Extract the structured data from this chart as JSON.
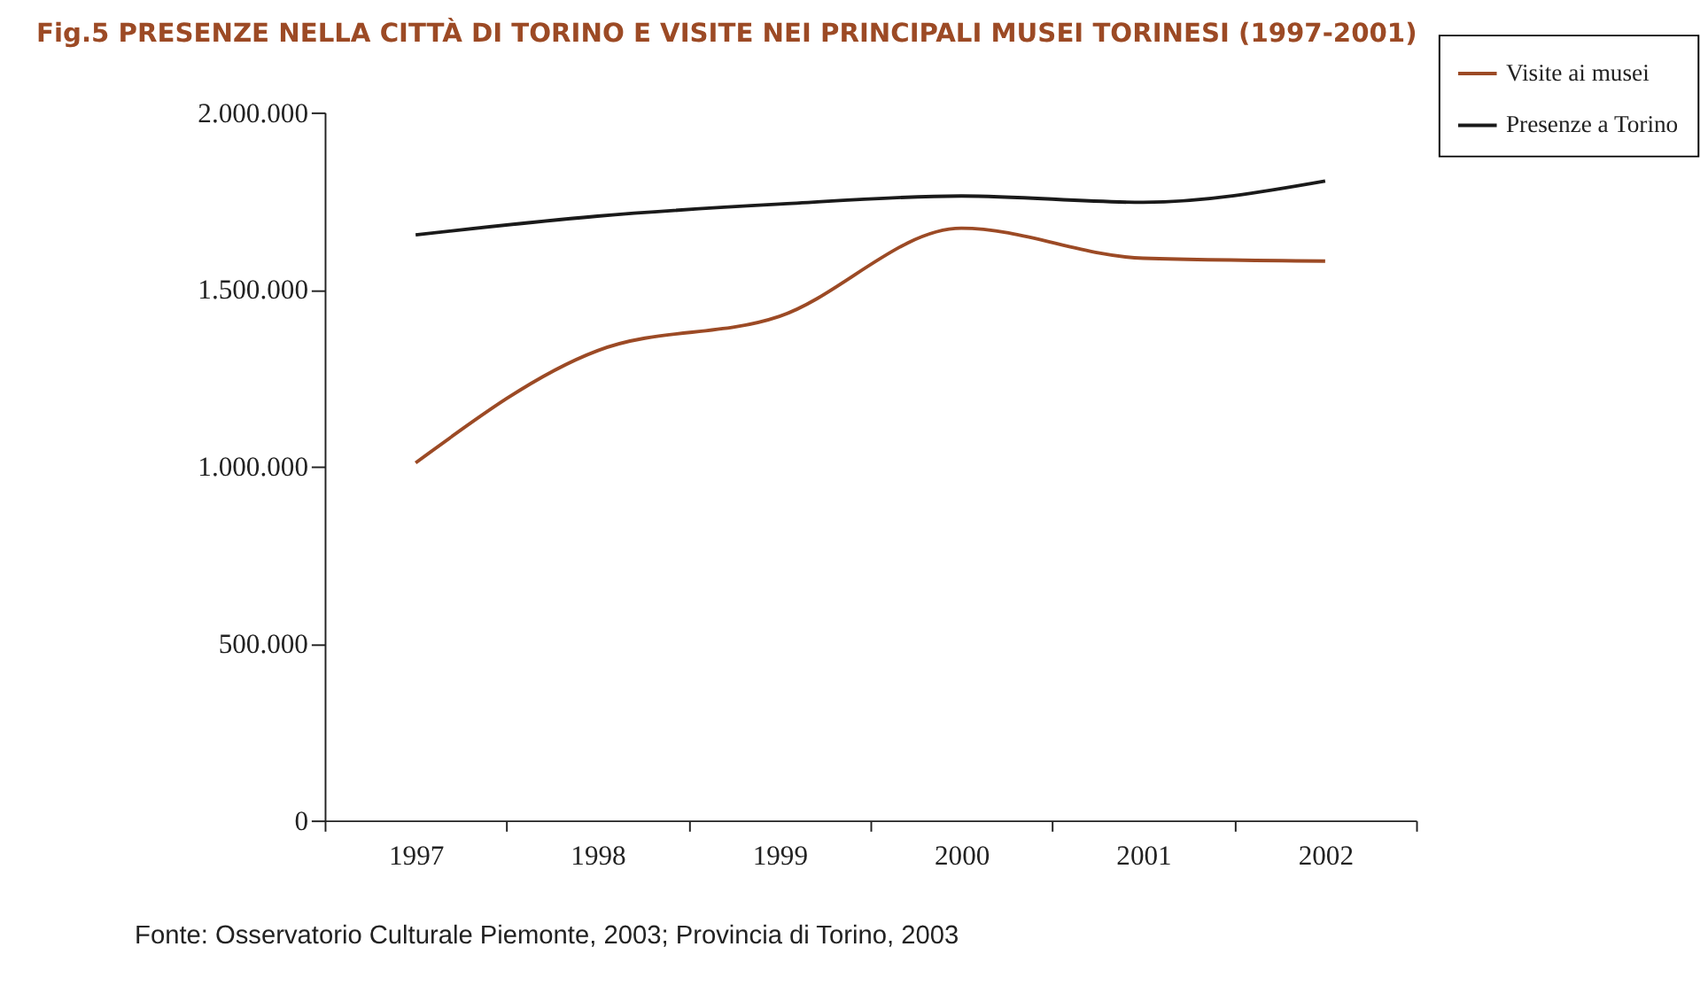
{
  "chart_data": {
    "type": "line",
    "title": "Fig.5 PRESENZE NELLA CITTÀ DI TORINO E VISITE NEI PRINCIPALI MUSEI TORINESI (1997-2001)",
    "categories": [
      "1997",
      "1998",
      "1999",
      "2000",
      "2001",
      "2002"
    ],
    "series": [
      {
        "name": "Visite ai musei",
        "color": "#9c4a25",
        "values": [
          1010000,
          1327000,
          1424000,
          1673000,
          1588000,
          1580000
        ]
      },
      {
        "name": "Presenze a Torino",
        "color": "#1a1a1a",
        "values": [
          1654000,
          1707000,
          1741000,
          1764000,
          1746000,
          1806000
        ]
      }
    ],
    "ylim": [
      0,
      2000000
    ],
    "yticks": [
      0,
      {
        "value": 500000,
        "label": "500.000"
      },
      {
        "value": 1000000,
        "label": "1.000.000"
      },
      {
        "value": 1500000,
        "label": "1.500.000"
      },
      {
        "value": 2000000,
        "label": "2.000.000"
      }
    ],
    "grid": false,
    "legend": "top right",
    "marker": "none",
    "line_style": "solid",
    "annotations": [
      "Fonte: Osservatorio Culturale Piemonte, 2003; Provincia di Torino, 2003"
    ]
  }
}
